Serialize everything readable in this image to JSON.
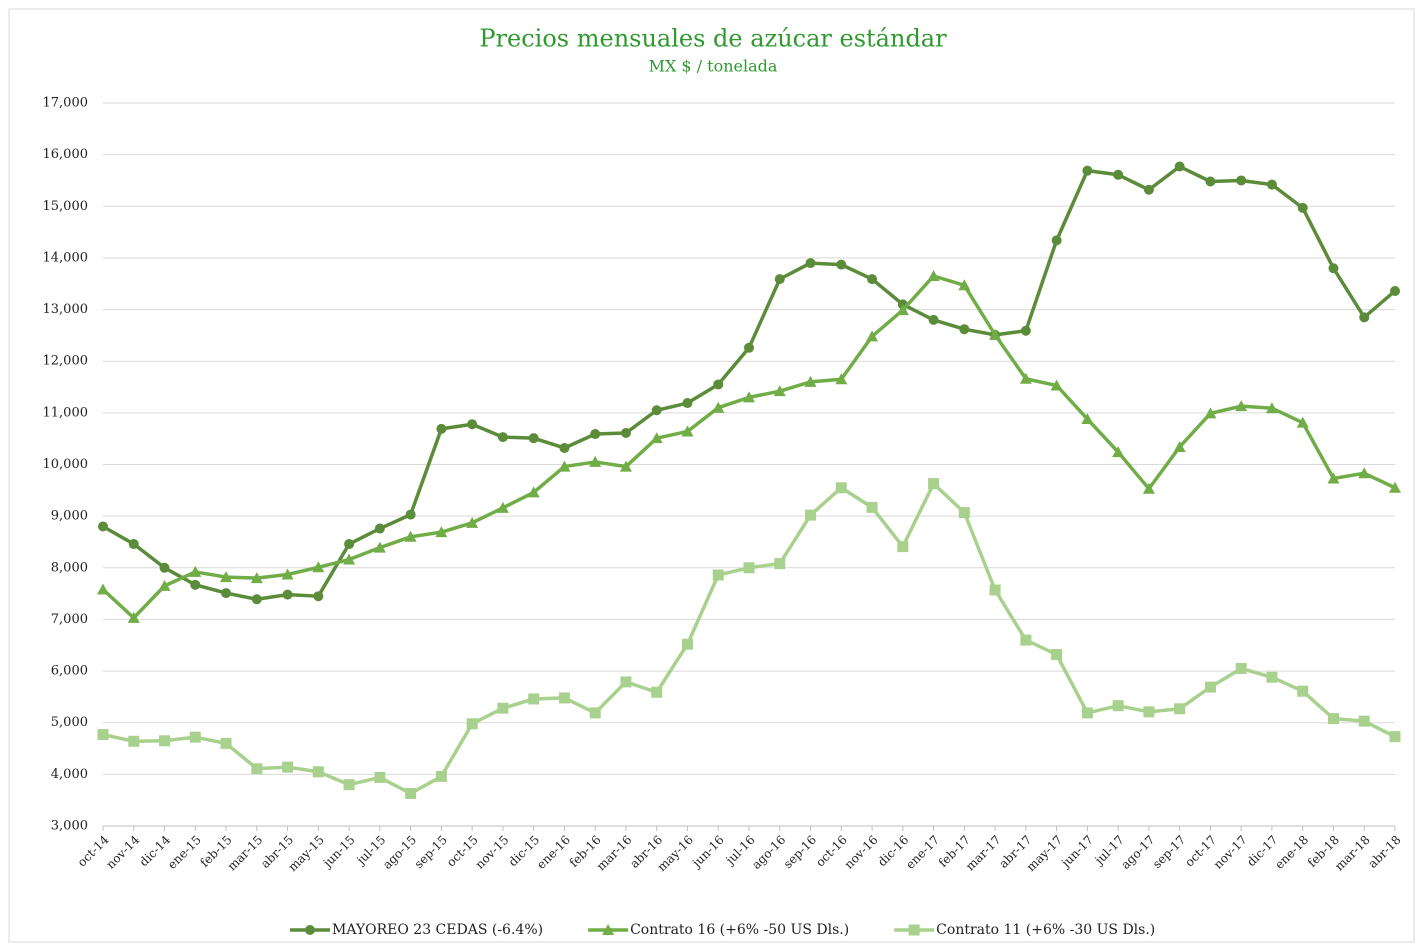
{
  "chart_data": {
    "type": "line",
    "title": "Precios mensuales de azúcar estándar",
    "subtitle": "MX $ / tonelada",
    "categories": [
      "oct-14",
      "nov-14",
      "dic-14",
      "ene-15",
      "feb-15",
      "mar-15",
      "abr-15",
      "may-15",
      "jun-15",
      "jul-15",
      "ago-15",
      "sep-15",
      "oct-15",
      "nov-15",
      "dic-15",
      "ene-16",
      "feb-16",
      "mar-16",
      "abr-16",
      "may-16",
      "jun-16",
      "jul-16",
      "ago-16",
      "sep-16",
      "oct-16",
      "nov-16",
      "dic-16",
      "ene-17",
      "feb-17",
      "mar-17",
      "abr-17",
      "may-17",
      "jun-17",
      "jul-17",
      "ago-17",
      "sep-17",
      "oct-17",
      "nov-17",
      "dic-17",
      "ene-18",
      "feb-18",
      "mar-18",
      "abr-18"
    ],
    "series": [
      {
        "name": "MAYOREO 23 CEDAS (-6.4%)",
        "color": "#5b8c3a",
        "marker": "circle",
        "values": [
          8800,
          8460,
          8000,
          7670,
          7510,
          7390,
          7480,
          7450,
          8460,
          8760,
          9030,
          10690,
          10780,
          10530,
          10510,
          10320,
          10590,
          10610,
          11050,
          11190,
          11550,
          12260,
          13590,
          13900,
          13870,
          13590,
          13100,
          12800,
          12620,
          12510,
          12590,
          14340,
          15690,
          15610,
          15320,
          15770,
          15480,
          15500,
          15420,
          14970,
          13800,
          12850,
          13360
        ]
      },
      {
        "name": "Contrato 16 (+6% -50 US Dls.)",
        "color": "#70ad47",
        "marker": "triangle",
        "values": [
          7580,
          7030,
          7650,
          7920,
          7820,
          7800,
          7870,
          8010,
          8160,
          8390,
          8600,
          8690,
          8870,
          9160,
          9460,
          9960,
          10050,
          9960,
          10510,
          10640,
          11100,
          11300,
          11420,
          11600,
          11650,
          12480,
          12990,
          13650,
          13470,
          12510,
          11660,
          11530,
          10880,
          10240,
          9530,
          10340,
          10990,
          11130,
          11090,
          10810,
          9730,
          9830,
          9550
        ]
      },
      {
        "name": "Contrato 11 (+6% -30 US Dls.)",
        "color": "#a9d18e",
        "marker": "square",
        "values": [
          4770,
          4640,
          4650,
          4720,
          4600,
          4110,
          4140,
          4050,
          3800,
          3940,
          3630,
          3960,
          4980,
          5280,
          5460,
          5480,
          5190,
          5790,
          5590,
          6520,
          7860,
          8000,
          8080,
          9020,
          9550,
          9170,
          8410,
          9630,
          9070,
          7570,
          6600,
          6320,
          5190,
          5330,
          5210,
          5270,
          5690,
          6050,
          5880,
          5610,
          5080,
          5030,
          4730
        ]
      }
    ],
    "ylim": [
      3000,
      17000
    ],
    "yticks": [
      {
        "value": 3000,
        "label": "3,000"
      },
      {
        "value": 4000,
        "label": "4,000"
      },
      {
        "value": 5000,
        "label": "5,000"
      },
      {
        "value": 6000,
        "label": "6,000"
      },
      {
        "value": 7000,
        "label": "7,000"
      },
      {
        "value": 8000,
        "label": "8,000"
      },
      {
        "value": 9000,
        "label": "9,000"
      },
      {
        "value": 10000,
        "label": "10,000"
      },
      {
        "value": 11000,
        "label": "11,000"
      },
      {
        "value": 12000,
        "label": "12,000"
      },
      {
        "value": 13000,
        "label": "13,000"
      },
      {
        "value": 14000,
        "label": "14,000"
      },
      {
        "value": 15000,
        "label": "15,000"
      },
      {
        "value": 16000,
        "label": "16,000"
      },
      {
        "value": 17000,
        "label": "17,000"
      }
    ],
    "grid": true,
    "legend": "bottom",
    "title_color": "#2e9a2e"
  }
}
